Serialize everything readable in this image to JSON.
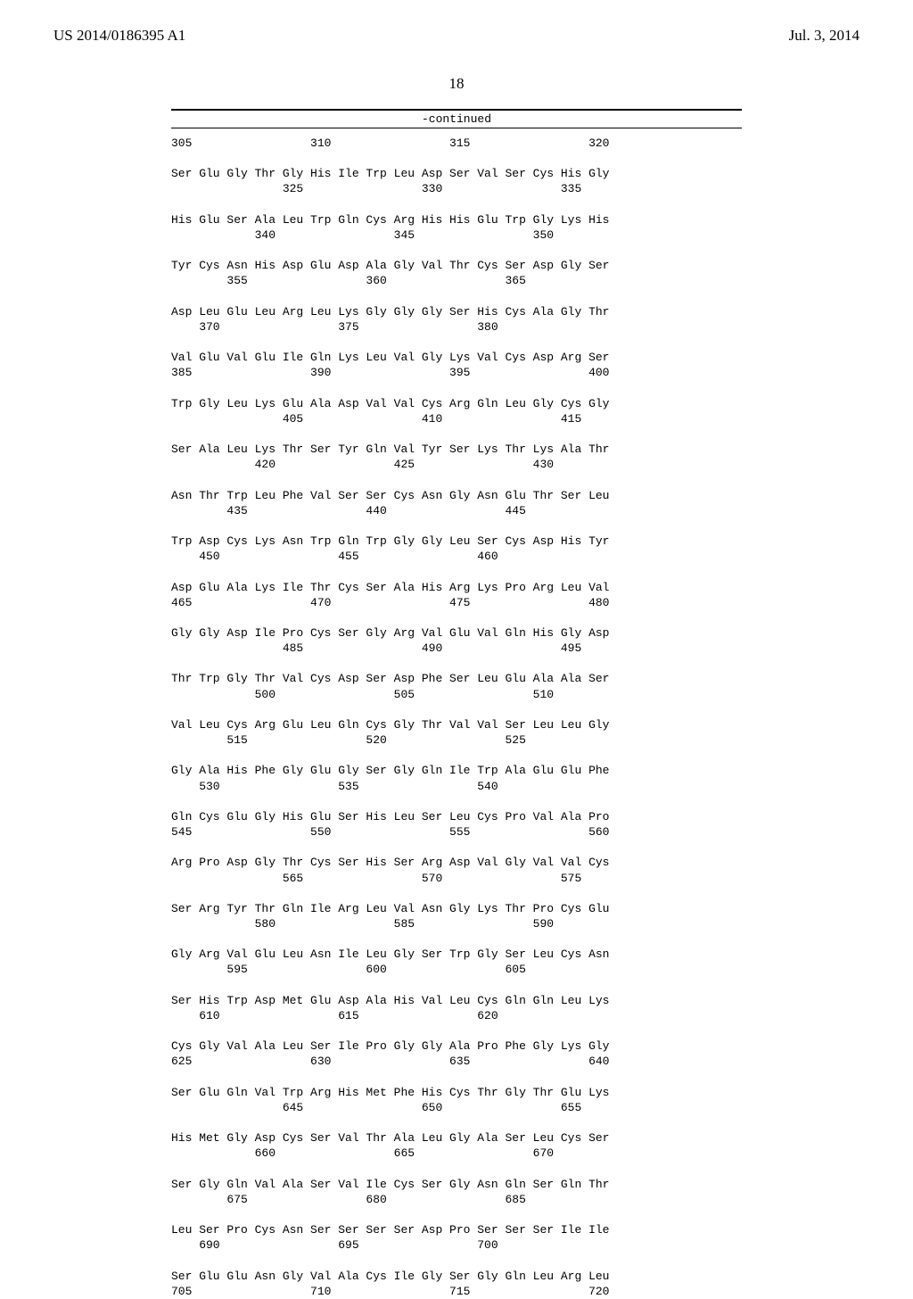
{
  "header": {
    "left": "US 2014/0186395 A1",
    "right": "Jul. 3, 2014"
  },
  "page_number": "18",
  "continued_label": "-continued",
  "sequence_rows": [
    {
      "type": "num",
      "text": "305                 310                 315                 320"
    },
    {
      "type": "gap",
      "text": ""
    },
    {
      "type": "res",
      "text": "Ser Glu Gly Thr Gly His Ile Trp Leu Asp Ser Val Ser Cys His Gly"
    },
    {
      "type": "num",
      "text": "                325                 330                 335"
    },
    {
      "type": "gap",
      "text": ""
    },
    {
      "type": "res",
      "text": "His Glu Ser Ala Leu Trp Gln Cys Arg His His Glu Trp Gly Lys His"
    },
    {
      "type": "num",
      "text": "            340                 345                 350"
    },
    {
      "type": "gap",
      "text": ""
    },
    {
      "type": "res",
      "text": "Tyr Cys Asn His Asp Glu Asp Ala Gly Val Thr Cys Ser Asp Gly Ser"
    },
    {
      "type": "num",
      "text": "        355                 360                 365"
    },
    {
      "type": "gap",
      "text": ""
    },
    {
      "type": "res",
      "text": "Asp Leu Glu Leu Arg Leu Lys Gly Gly Gly Ser His Cys Ala Gly Thr"
    },
    {
      "type": "num",
      "text": "    370                 375                 380"
    },
    {
      "type": "gap",
      "text": ""
    },
    {
      "type": "res",
      "text": "Val Glu Val Glu Ile Gln Lys Leu Val Gly Lys Val Cys Asp Arg Ser"
    },
    {
      "type": "num",
      "text": "385                 390                 395                 400"
    },
    {
      "type": "gap",
      "text": ""
    },
    {
      "type": "res",
      "text": "Trp Gly Leu Lys Glu Ala Asp Val Val Cys Arg Gln Leu Gly Cys Gly"
    },
    {
      "type": "num",
      "text": "                405                 410                 415"
    },
    {
      "type": "gap",
      "text": ""
    },
    {
      "type": "res",
      "text": "Ser Ala Leu Lys Thr Ser Tyr Gln Val Tyr Ser Lys Thr Lys Ala Thr"
    },
    {
      "type": "num",
      "text": "            420                 425                 430"
    },
    {
      "type": "gap",
      "text": ""
    },
    {
      "type": "res",
      "text": "Asn Thr Trp Leu Phe Val Ser Ser Cys Asn Gly Asn Glu Thr Ser Leu"
    },
    {
      "type": "num",
      "text": "        435                 440                 445"
    },
    {
      "type": "gap",
      "text": ""
    },
    {
      "type": "res",
      "text": "Trp Asp Cys Lys Asn Trp Gln Trp Gly Gly Leu Ser Cys Asp His Tyr"
    },
    {
      "type": "num",
      "text": "    450                 455                 460"
    },
    {
      "type": "gap",
      "text": ""
    },
    {
      "type": "res",
      "text": "Asp Glu Ala Lys Ile Thr Cys Ser Ala His Arg Lys Pro Arg Leu Val"
    },
    {
      "type": "num",
      "text": "465                 470                 475                 480"
    },
    {
      "type": "gap",
      "text": ""
    },
    {
      "type": "res",
      "text": "Gly Gly Asp Ile Pro Cys Ser Gly Arg Val Glu Val Gln His Gly Asp"
    },
    {
      "type": "num",
      "text": "                485                 490                 495"
    },
    {
      "type": "gap",
      "text": ""
    },
    {
      "type": "res",
      "text": "Thr Trp Gly Thr Val Cys Asp Ser Asp Phe Ser Leu Glu Ala Ala Ser"
    },
    {
      "type": "num",
      "text": "            500                 505                 510"
    },
    {
      "type": "gap",
      "text": ""
    },
    {
      "type": "res",
      "text": "Val Leu Cys Arg Glu Leu Gln Cys Gly Thr Val Val Ser Leu Leu Gly"
    },
    {
      "type": "num",
      "text": "        515                 520                 525"
    },
    {
      "type": "gap",
      "text": ""
    },
    {
      "type": "res",
      "text": "Gly Ala His Phe Gly Glu Gly Ser Gly Gln Ile Trp Ala Glu Glu Phe"
    },
    {
      "type": "num",
      "text": "    530                 535                 540"
    },
    {
      "type": "gap",
      "text": ""
    },
    {
      "type": "res",
      "text": "Gln Cys Glu Gly His Glu Ser His Leu Ser Leu Cys Pro Val Ala Pro"
    },
    {
      "type": "num",
      "text": "545                 550                 555                 560"
    },
    {
      "type": "gap",
      "text": ""
    },
    {
      "type": "res",
      "text": "Arg Pro Asp Gly Thr Cys Ser His Ser Arg Asp Val Gly Val Val Cys"
    },
    {
      "type": "num",
      "text": "                565                 570                 575"
    },
    {
      "type": "gap",
      "text": ""
    },
    {
      "type": "res",
      "text": "Ser Arg Tyr Thr Gln Ile Arg Leu Val Asn Gly Lys Thr Pro Cys Glu"
    },
    {
      "type": "num",
      "text": "            580                 585                 590"
    },
    {
      "type": "gap",
      "text": ""
    },
    {
      "type": "res",
      "text": "Gly Arg Val Glu Leu Asn Ile Leu Gly Ser Trp Gly Ser Leu Cys Asn"
    },
    {
      "type": "num",
      "text": "        595                 600                 605"
    },
    {
      "type": "gap",
      "text": ""
    },
    {
      "type": "res",
      "text": "Ser His Trp Asp Met Glu Asp Ala His Val Leu Cys Gln Gln Leu Lys"
    },
    {
      "type": "num",
      "text": "    610                 615                 620"
    },
    {
      "type": "gap",
      "text": ""
    },
    {
      "type": "res",
      "text": "Cys Gly Val Ala Leu Ser Ile Pro Gly Gly Ala Pro Phe Gly Lys Gly"
    },
    {
      "type": "num",
      "text": "625                 630                 635                 640"
    },
    {
      "type": "gap",
      "text": ""
    },
    {
      "type": "res",
      "text": "Ser Glu Gln Val Trp Arg His Met Phe His Cys Thr Gly Thr Glu Lys"
    },
    {
      "type": "num",
      "text": "                645                 650                 655"
    },
    {
      "type": "gap",
      "text": ""
    },
    {
      "type": "res",
      "text": "His Met Gly Asp Cys Ser Val Thr Ala Leu Gly Ala Ser Leu Cys Ser"
    },
    {
      "type": "num",
      "text": "            660                 665                 670"
    },
    {
      "type": "gap",
      "text": ""
    },
    {
      "type": "res",
      "text": "Ser Gly Gln Val Ala Ser Val Ile Cys Ser Gly Asn Gln Ser Gln Thr"
    },
    {
      "type": "num",
      "text": "        675                 680                 685"
    },
    {
      "type": "gap",
      "text": ""
    },
    {
      "type": "res",
      "text": "Leu Ser Pro Cys Asn Ser Ser Ser Ser Asp Pro Ser Ser Ser Ile Ile"
    },
    {
      "type": "num",
      "text": "    690                 695                 700"
    },
    {
      "type": "gap",
      "text": ""
    },
    {
      "type": "res",
      "text": "Ser Glu Glu Asn Gly Val Ala Cys Ile Gly Ser Gly Gln Leu Arg Leu"
    },
    {
      "type": "num",
      "text": "705                 710                 715                 720"
    }
  ]
}
